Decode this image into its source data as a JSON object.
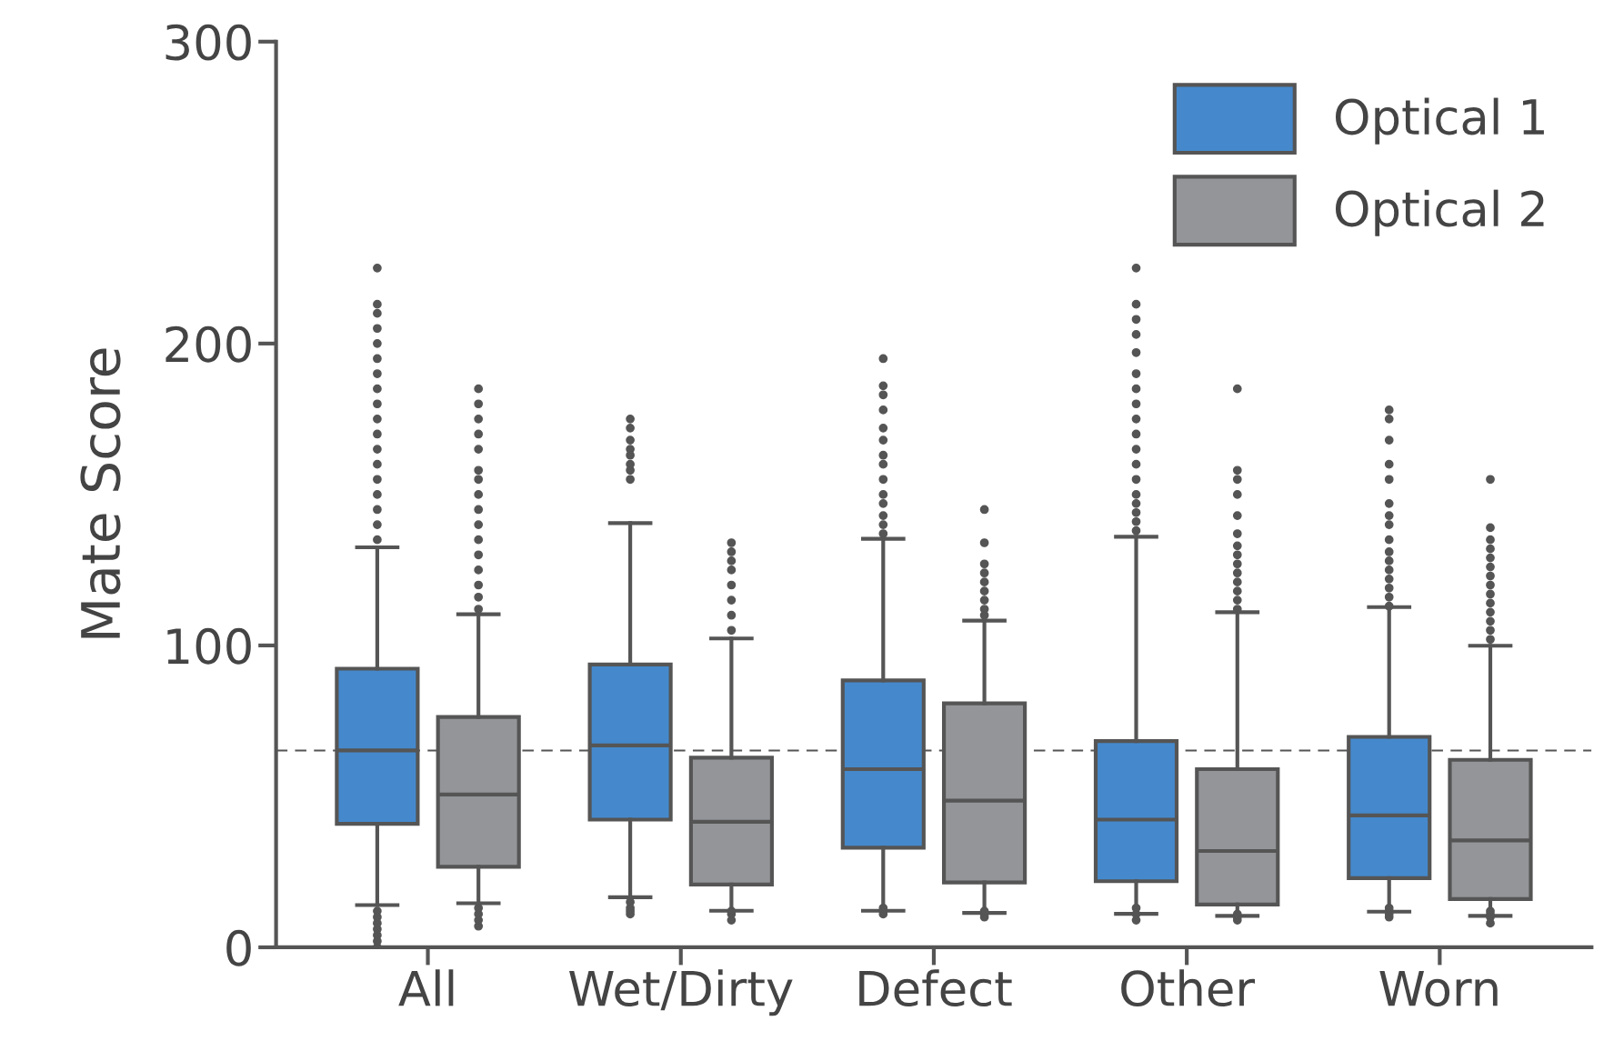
{
  "chart_data": {
    "type": "box",
    "ylabel": "Mate Score",
    "categories": [
      "All",
      "Wet/Dirty",
      "Defect",
      "Other",
      "Worn"
    ],
    "ylim": [
      0,
      300
    ],
    "yticks": [
      0,
      100,
      200,
      300
    ],
    "grid": false,
    "legend": "top right",
    "ref_lines": [
      {
        "axis": "y",
        "value": 65.2,
        "color": "#555555",
        "line_style": "dashed"
      }
    ],
    "series": [
      {
        "name": "Optical 1",
        "color": "#4589cc",
        "boxes": [
          {
            "low": 14,
            "q1": 40.9,
            "median": 65.2,
            "q3": 92.3,
            "high": 132.5,
            "outliers": [
              135,
              140,
              145,
              150,
              155,
              160,
              165,
              170,
              175,
              180,
              185,
              190,
              195,
              200,
              205,
              210,
              213,
              225,
              0,
              2,
              4,
              6,
              8,
              10,
              12
            ]
          },
          {
            "low": 16.6,
            "q1": 42.3,
            "median": 66.9,
            "q3": 93.7,
            "high": 140.5,
            "outliers": [
              155,
              158,
              160,
              163,
              165,
              168,
              172,
              175,
              11,
              12,
              13,
              15
            ]
          },
          {
            "low": 12.1,
            "q1": 33,
            "median": 59,
            "q3": 88.4,
            "high": 135.3,
            "outliers": [
              137,
              140,
              143,
              147,
              150,
              155,
              160,
              163,
              168,
              172,
              178,
              183,
              186,
              195,
              11,
              12,
              13
            ]
          },
          {
            "low": 11.1,
            "q1": 21.9,
            "median": 42.3,
            "q3": 68.3,
            "high": 136,
            "outliers": [
              138,
              141,
              144,
              147,
              150,
              155,
              160,
              165,
              170,
              175,
              180,
              185,
              190,
              197,
              203,
              208,
              213,
              225,
              9,
              11,
              13
            ]
          },
          {
            "low": 11.8,
            "q1": 22.9,
            "median": 43.7,
            "q3": 69.7,
            "high": 112.7,
            "outliers": [
              113,
              116,
              119,
              122,
              125,
              128,
              131,
              135,
              140,
              143,
              147,
              155,
              160,
              168,
              175,
              178,
              10,
              11,
              12,
              13
            ]
          }
        ]
      },
      {
        "name": "Optical 2",
        "color": "#939598",
        "boxes": [
          {
            "low": 14.6,
            "q1": 26.7,
            "median": 50.6,
            "q3": 76.3,
            "high": 110.3,
            "outliers": [
              112,
              116,
              120,
              125,
              130,
              135,
              140,
              145,
              150,
              155,
              158,
              165,
              170,
              175,
              180,
              185,
              7,
              9,
              11,
              13
            ]
          },
          {
            "low": 12.1,
            "q1": 20.8,
            "median": 41.6,
            "q3": 62.8,
            "high": 102.3,
            "outliers": [
              105,
              110,
              115,
              120,
              125,
              128,
              131,
              134,
              9,
              11,
              12
            ]
          },
          {
            "low": 11.4,
            "q1": 21.5,
            "median": 48.6,
            "q3": 80.8,
            "high": 108.2,
            "outliers": [
              110,
              112,
              115,
              118,
              121,
              124,
              127,
              134,
              145,
              10,
              11,
              12
            ]
          },
          {
            "low": 10.4,
            "q1": 14.2,
            "median": 31.9,
            "q3": 59,
            "high": 111,
            "outliers": [
              112,
              115,
              118,
              121,
              124,
              127,
              130,
              133,
              137,
              143,
              150,
              155,
              158,
              185,
              9,
              10,
              11
            ]
          },
          {
            "low": 10.4,
            "q1": 16,
            "median": 35.4,
            "q3": 62.1,
            "high": 99.9,
            "outliers": [
              102,
              105,
              108,
              111,
              114,
              117,
              120,
              123,
              126,
              129,
              132,
              135,
              139,
              155,
              8,
              10,
              11,
              12
            ]
          }
        ]
      }
    ]
  }
}
